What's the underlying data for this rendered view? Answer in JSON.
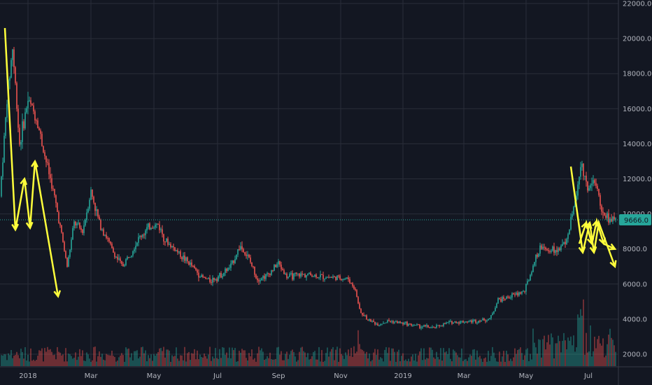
{
  "chart_data": {
    "type": "candlestick",
    "ylim": [
      1000,
      22000
    ],
    "y_ticks": [
      "2000.0",
      "4000.0",
      "6000.0",
      "8000.0",
      "10000.0",
      "12000.0",
      "14000.0",
      "16000.0",
      "18000.0",
      "20000.0",
      "22000.0"
    ],
    "x_ticks": [
      "2018",
      "Mar",
      "May",
      "Jul",
      "Sep",
      "Nov",
      "2019",
      "Mar",
      "May",
      "Jul"
    ],
    "last_price": "9666.0",
    "last_price_value": 9666,
    "colors": {
      "up": "#26a69a",
      "down": "#ef5350",
      "annotation": "#ffff3b",
      "background": "#131722",
      "grid": "#2a2e39"
    },
    "series": [
      {
        "values_close_approx": [
          [
            0,
            11000
          ],
          [
            10,
            16500
          ],
          [
            18,
            19500
          ],
          [
            28,
            14000
          ],
          [
            40,
            16500
          ],
          [
            52,
            15500
          ],
          [
            63,
            13500
          ],
          [
            75,
            11500
          ],
          [
            85,
            9500
          ],
          [
            96,
            7000
          ],
          [
            106,
            9500
          ],
          [
            118,
            9000
          ],
          [
            130,
            11300
          ],
          [
            142,
            9500
          ],
          [
            152,
            8700
          ],
          [
            162,
            7800
          ],
          [
            175,
            7000
          ],
          [
            188,
            7900
          ],
          [
            200,
            8700
          ],
          [
            215,
            9300
          ],
          [
            226,
            9400
          ],
          [
            238,
            8400
          ],
          [
            250,
            8000
          ],
          [
            262,
            7500
          ],
          [
            275,
            7000
          ],
          [
            288,
            6400
          ],
          [
            300,
            6200
          ],
          [
            315,
            6500
          ],
          [
            330,
            7000
          ],
          [
            343,
            8200
          ],
          [
            355,
            7500
          ],
          [
            368,
            6300
          ],
          [
            382,
            6500
          ],
          [
            398,
            7200
          ],
          [
            410,
            6400
          ],
          [
            425,
            6500
          ],
          [
            440,
            6550
          ],
          [
            455,
            6450
          ],
          [
            470,
            6400
          ],
          [
            485,
            6350
          ],
          [
            498,
            6300
          ],
          [
            508,
            5600
          ],
          [
            515,
            4400
          ],
          [
            525,
            4000
          ],
          [
            540,
            3700
          ],
          [
            555,
            3900
          ],
          [
            570,
            3800
          ],
          [
            585,
            3700
          ],
          [
            600,
            3600
          ],
          [
            620,
            3500
          ],
          [
            640,
            3800
          ],
          [
            660,
            3850
          ],
          [
            680,
            3900
          ],
          [
            700,
            4000
          ],
          [
            712,
            5100
          ],
          [
            730,
            5300
          ],
          [
            750,
            5600
          ],
          [
            762,
            7000
          ],
          [
            772,
            8100
          ],
          [
            785,
            8000
          ],
          [
            800,
            7900
          ],
          [
            812,
            8800
          ],
          [
            822,
            10800
          ],
          [
            832,
            12800
          ],
          [
            840,
            11500
          ],
          [
            850,
            12000
          ],
          [
            858,
            10500
          ],
          [
            866,
            9800
          ],
          [
            876,
            9666
          ]
        ]
      }
    ],
    "annotations": [
      {
        "type": "arrow-path",
        "points": [
          [
            7,
            20600
          ],
          [
            22,
            9100
          ],
          [
            35,
            12000
          ],
          [
            43,
            9200
          ],
          [
            50,
            13000
          ],
          [
            83,
            5300
          ]
        ]
      },
      {
        "type": "arrow-path",
        "points": [
          [
            816,
            12700
          ],
          [
            833,
            7800
          ],
          [
            843,
            9500
          ],
          [
            849,
            7800
          ],
          [
            856,
            9500
          ],
          [
            879,
            7000
          ]
        ]
      },
      {
        "type": "arrow-path",
        "points": [
          [
            828,
            8300
          ],
          [
            838,
            9500
          ],
          [
            846,
            8300
          ],
          [
            853,
            9600
          ],
          [
            863,
            8300
          ],
          [
            879,
            8000
          ]
        ]
      }
    ]
  }
}
